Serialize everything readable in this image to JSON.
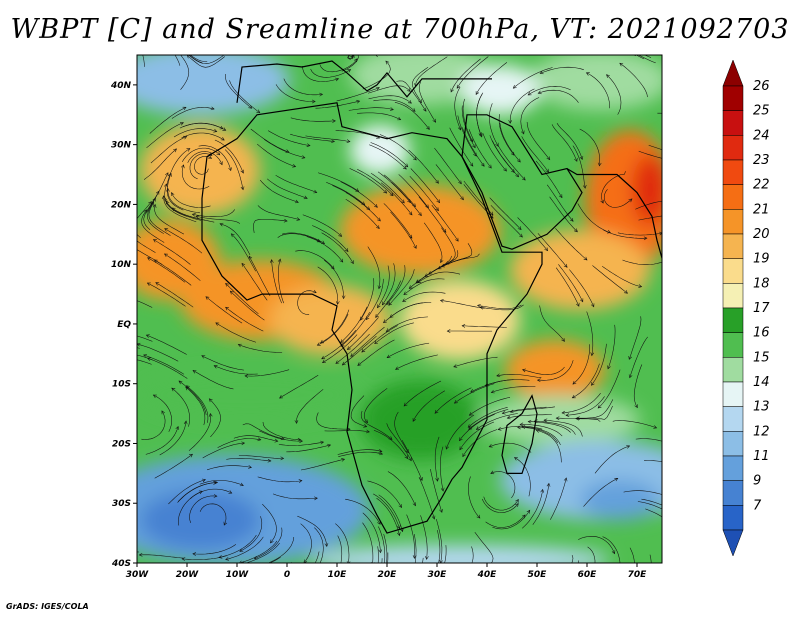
{
  "title": "WBPT [C] and Sreamline at 700hPa, VT: 2021092703",
  "credit": "GrADS: IGES/COLA",
  "map": {
    "lon_range": [
      -30,
      75
    ],
    "lat_range": [
      -40,
      45
    ],
    "lon_ticks": [
      {
        "value": -30,
        "label": "30W"
      },
      {
        "value": -20,
        "label": "20W"
      },
      {
        "value": -10,
        "label": "10W"
      },
      {
        "value": 0,
        "label": "0"
      },
      {
        "value": 10,
        "label": "10E"
      },
      {
        "value": 20,
        "label": "20E"
      },
      {
        "value": 30,
        "label": "30E"
      },
      {
        "value": 40,
        "label": "40E"
      },
      {
        "value": 50,
        "label": "50E"
      },
      {
        "value": 60,
        "label": "60E"
      },
      {
        "value": 70,
        "label": "70E"
      }
    ],
    "lat_ticks": [
      {
        "value": 40,
        "label": "40N"
      },
      {
        "value": 30,
        "label": "30N"
      },
      {
        "value": 20,
        "label": "20N"
      },
      {
        "value": 10,
        "label": "10N"
      },
      {
        "value": 0,
        "label": "EQ"
      },
      {
        "value": -10,
        "label": "10S"
      },
      {
        "value": -20,
        "label": "20S"
      },
      {
        "value": -30,
        "label": "30S"
      },
      {
        "value": -40,
        "label": "40S"
      }
    ]
  },
  "colorbar": {
    "levels": [
      {
        "label": "26",
        "color": "#a00000"
      },
      {
        "label": "25",
        "color": "#c81010"
      },
      {
        "label": "24",
        "color": "#e02a10"
      },
      {
        "label": "23",
        "color": "#f04a10"
      },
      {
        "label": "22",
        "color": "#f56e14"
      },
      {
        "label": "21",
        "color": "#f59428"
      },
      {
        "label": "20",
        "color": "#f5b450"
      },
      {
        "label": "19",
        "color": "#fadc8c"
      },
      {
        "label": "18",
        "color": "#f5f0b4"
      },
      {
        "label": "17",
        "color": "#28a028"
      },
      {
        "label": "16",
        "color": "#50be50"
      },
      {
        "label": "15",
        "color": "#a0dca0"
      },
      {
        "label": "14",
        "color": "#e6f5f5"
      },
      {
        "label": "13",
        "color": "#b4d7f0"
      },
      {
        "label": "12",
        "color": "#8cbee6"
      },
      {
        "label": "11",
        "color": "#64a0dc"
      },
      {
        "label": "9",
        "color": "#4682d2"
      },
      {
        "label": "7",
        "color": "#2864c8"
      }
    ],
    "under_color": "#1e50b4",
    "over_color": "#8c0000"
  }
}
